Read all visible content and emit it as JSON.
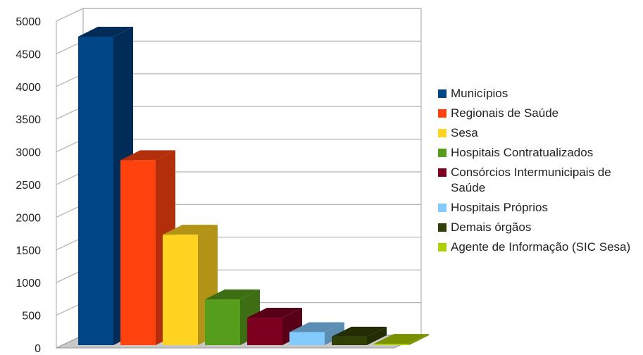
{
  "chart_data": {
    "type": "bar",
    "style": "3d-column",
    "title": "",
    "xlabel": "",
    "ylabel": "",
    "ylim": [
      0,
      5000
    ],
    "yticks": [
      0,
      500,
      1000,
      1500,
      2000,
      2500,
      3000,
      3500,
      4000,
      4500,
      5000
    ],
    "grid": true,
    "legend_position": "right",
    "categories": [
      "Municípios",
      "Regionais de Saúde",
      "Sesa",
      "Hospitais Contratualizados",
      "Consórcios Intermunicipais de Saúde",
      "Hospitais Próprios",
      "Demais órgãos",
      "Agente de Informação (SIC Sesa)"
    ],
    "values": [
      4720,
      2830,
      1690,
      700,
      420,
      200,
      130,
      20
    ],
    "colors": [
      "#004586",
      "#ff420e",
      "#ffd320",
      "#579d1c",
      "#7e0021",
      "#83caff",
      "#314004",
      "#aecf00"
    ],
    "side_colors": [
      "#002c57",
      "#b32e0a",
      "#b39316",
      "#3d6e14",
      "#580017",
      "#5c8db3",
      "#222d03",
      "#7a9100"
    ]
  }
}
